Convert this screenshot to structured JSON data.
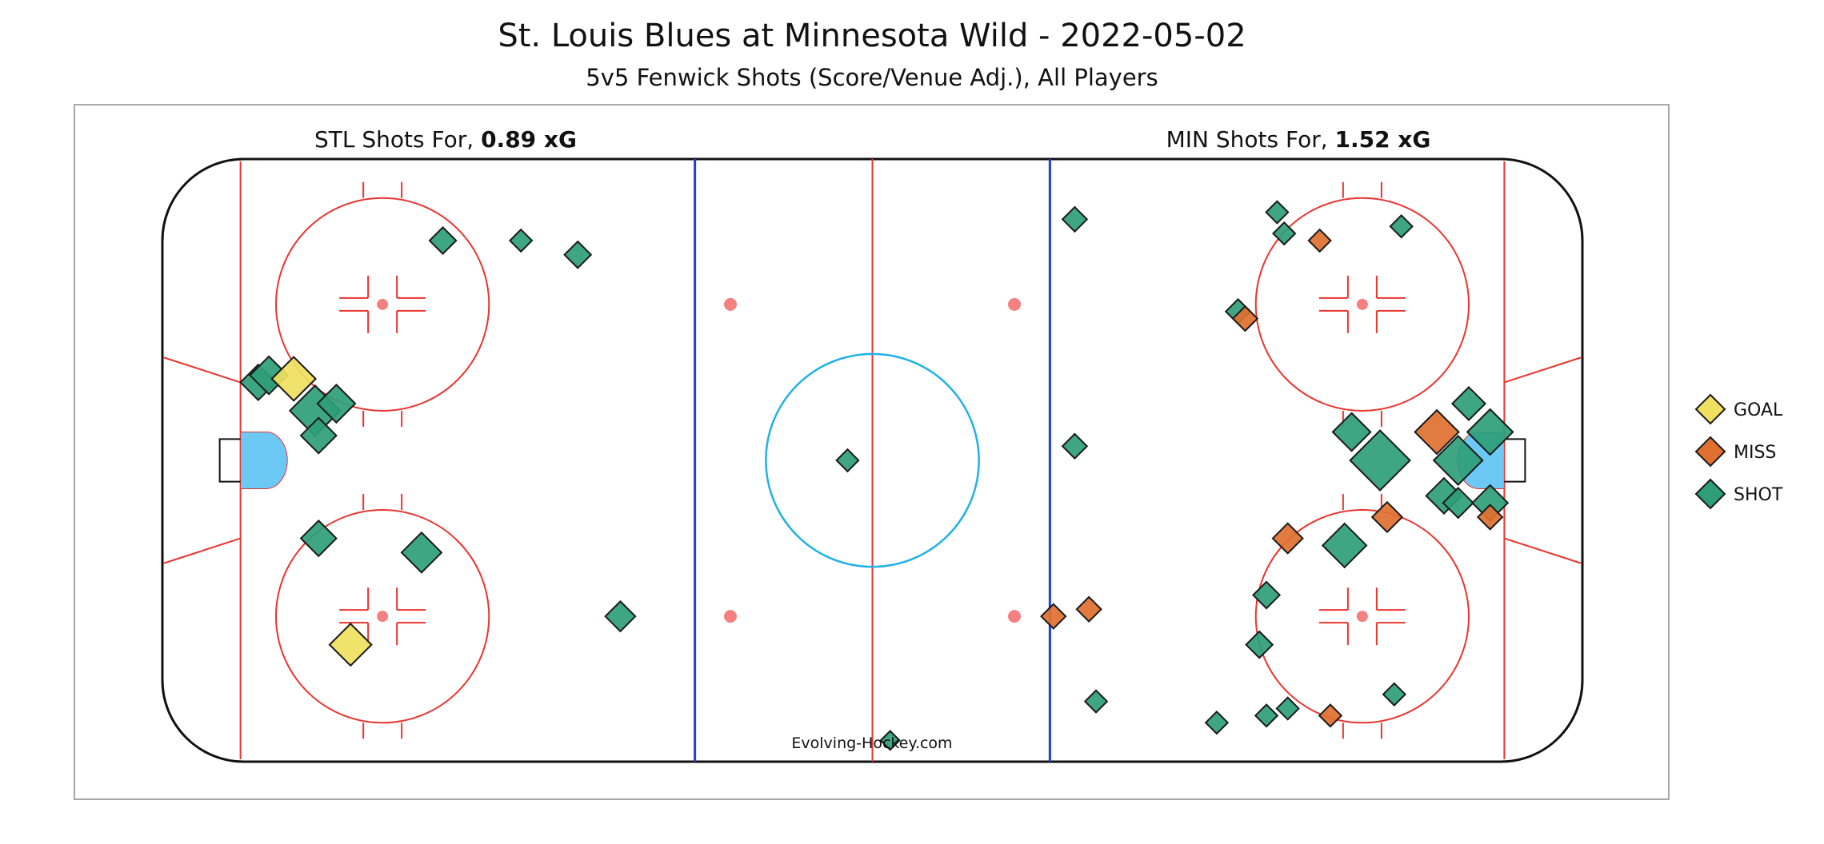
{
  "chart_data": {
    "type": "scatter",
    "title": "St. Louis Blues at Minnesota Wild - 2022-05-02",
    "subtitle": "5v5 Fenwick Shots (Score/Venue Adj.), All Players",
    "watermark": "Evolving-Hockey.com",
    "teams": {
      "left": {
        "label_prefix": "STL Shots For, ",
        "xg_text": "0.89 xG"
      },
      "right": {
        "label_prefix": "MIN Shots For, ",
        "xg_text": "1.52 xG"
      }
    },
    "x_range": [
      -100,
      100
    ],
    "y_range": [
      -42.5,
      42.5
    ],
    "legend": {
      "placement": "right",
      "items": [
        {
          "label": "GOAL",
          "color": "#f0e060"
        },
        {
          "label": "MISS",
          "color": "#e07030"
        },
        {
          "label": "SHOT",
          "color": "#2e9e78"
        }
      ]
    },
    "colors": {
      "goal": "#f0e060",
      "miss": "#e07030",
      "shot": "#2e9e78",
      "boards": "#111111",
      "red_line": "#e8352f",
      "blue_line": "#1f3fd6",
      "center_circle": "#1fb1e8",
      "crease": "#6cc8f4",
      "faceoff_dot": "#f58080",
      "frame": "#a8a8a8"
    },
    "shots": [
      {
        "x": -86.5,
        "y": 11.0,
        "type": "shot",
        "xg": 0.05
      },
      {
        "x": -85.0,
        "y": 12.0,
        "type": "shot",
        "xg": 0.06
      },
      {
        "x": -81.5,
        "y": 11.5,
        "type": "goal",
        "xg": 0.09
      },
      {
        "x": -78.5,
        "y": 7.0,
        "type": "shot",
        "xg": 0.13
      },
      {
        "x": -75.5,
        "y": 8.0,
        "type": "shot",
        "xg": 0.06
      },
      {
        "x": -78.0,
        "y": 3.5,
        "type": "shot",
        "xg": 0.05
      },
      {
        "x": -60.5,
        "y": 31.0,
        "type": "shot",
        "xg": 0.02
      },
      {
        "x": -49.5,
        "y": 31.0,
        "type": "shot",
        "xg": 0.01
      },
      {
        "x": -41.5,
        "y": 29.0,
        "type": "shot",
        "xg": 0.02
      },
      {
        "x": -78.0,
        "y": -11.0,
        "type": "shot",
        "xg": 0.05
      },
      {
        "x": -63.5,
        "y": -13.0,
        "type": "shot",
        "xg": 0.07
      },
      {
        "x": -35.5,
        "y": -22.0,
        "type": "shot",
        "xg": 0.03
      },
      {
        "x": -73.5,
        "y": -26.0,
        "type": "goal",
        "xg": 0.08
      },
      {
        "x": -3.5,
        "y": 0.0,
        "type": "shot",
        "xg": 0.01
      },
      {
        "x": 2.5,
        "y": -39.5,
        "type": "shot",
        "xg": 0.005
      },
      {
        "x": 28.5,
        "y": 34.0,
        "type": "shot",
        "xg": 0.015
      },
      {
        "x": 57.0,
        "y": 35.0,
        "type": "shot",
        "xg": 0.01
      },
      {
        "x": 58.0,
        "y": 32.0,
        "type": "shot",
        "xg": 0.01
      },
      {
        "x": 63.0,
        "y": 31.0,
        "type": "miss",
        "xg": 0.01
      },
      {
        "x": 74.5,
        "y": 33.0,
        "type": "shot",
        "xg": 0.01
      },
      {
        "x": 51.5,
        "y": 21.0,
        "type": "shot",
        "xg": 0.015
      },
      {
        "x": 52.5,
        "y": 20.0,
        "type": "miss",
        "xg": 0.015
      },
      {
        "x": 28.5,
        "y": 2.0,
        "type": "shot",
        "xg": 0.015
      },
      {
        "x": 67.5,
        "y": 4.0,
        "type": "shot",
        "xg": 0.06
      },
      {
        "x": 71.5,
        "y": 0.0,
        "type": "shot",
        "xg": 0.2
      },
      {
        "x": 79.5,
        "y": 4.0,
        "type": "miss",
        "xg": 0.09
      },
      {
        "x": 84.0,
        "y": 8.0,
        "type": "shot",
        "xg": 0.04
      },
      {
        "x": 87.0,
        "y": 4.0,
        "type": "shot",
        "xg": 0.1
      },
      {
        "x": 82.5,
        "y": 0.0,
        "type": "shot",
        "xg": 0.12
      },
      {
        "x": 80.5,
        "y": -5.0,
        "type": "shot",
        "xg": 0.05
      },
      {
        "x": 82.5,
        "y": -6.0,
        "type": "shot",
        "xg": 0.03
      },
      {
        "x": 87.0,
        "y": -6.0,
        "type": "shot",
        "xg": 0.05
      },
      {
        "x": 87.0,
        "y": -8.0,
        "type": "miss",
        "xg": 0.015
      },
      {
        "x": 72.5,
        "y": -8.0,
        "type": "miss",
        "xg": 0.03
      },
      {
        "x": 58.5,
        "y": -11.0,
        "type": "miss",
        "xg": 0.03
      },
      {
        "x": 66.5,
        "y": -12.0,
        "type": "shot",
        "xg": 0.09
      },
      {
        "x": 55.5,
        "y": -19.0,
        "type": "shot",
        "xg": 0.02
      },
      {
        "x": 30.5,
        "y": -21.0,
        "type": "miss",
        "xg": 0.015
      },
      {
        "x": 25.5,
        "y": -22.0,
        "type": "miss",
        "xg": 0.015
      },
      {
        "x": 54.5,
        "y": -26.0,
        "type": "shot",
        "xg": 0.02
      },
      {
        "x": 31.5,
        "y": -34.0,
        "type": "shot",
        "xg": 0.01
      },
      {
        "x": 48.5,
        "y": -37.0,
        "type": "shot",
        "xg": 0.01
      },
      {
        "x": 55.5,
        "y": -36.0,
        "type": "shot",
        "xg": 0.01
      },
      {
        "x": 58.5,
        "y": -35.0,
        "type": "shot",
        "xg": 0.01
      },
      {
        "x": 64.5,
        "y": -36.0,
        "type": "miss",
        "xg": 0.01
      },
      {
        "x": 73.5,
        "y": -33.0,
        "type": "shot",
        "xg": 0.01
      }
    ]
  }
}
